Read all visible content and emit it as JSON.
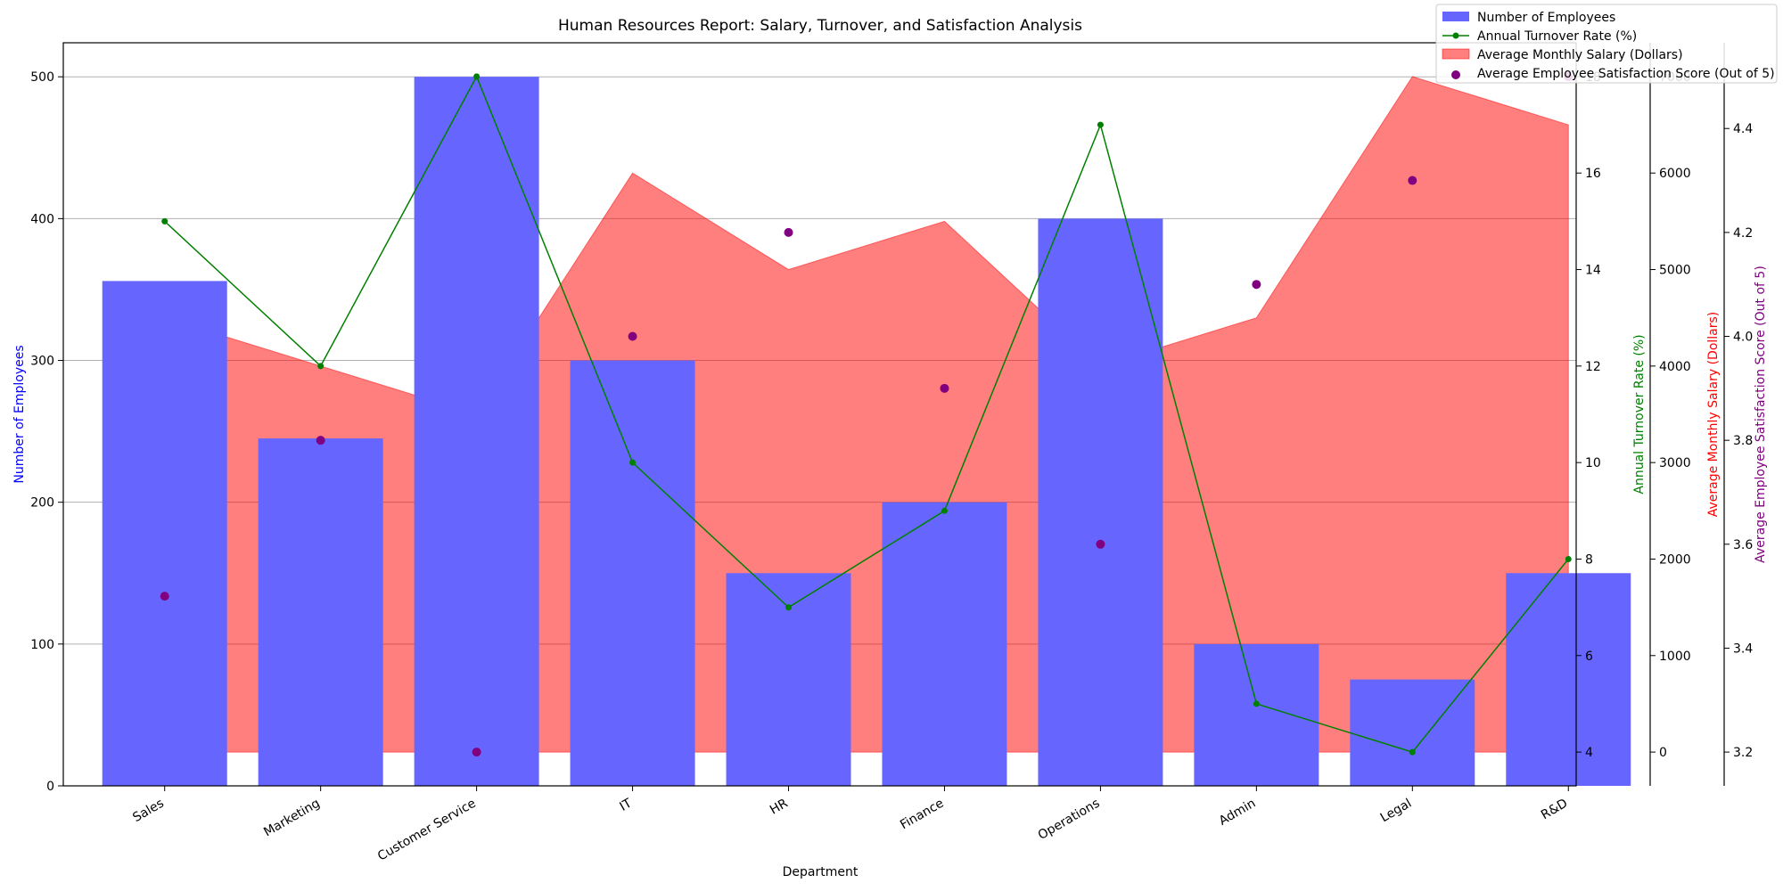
{
  "chart_data": {
    "type": "bar",
    "title": "Human Resources Report: Salary, Turnover, and Satisfaction Analysis",
    "xlabel": "Department",
    "categories": [
      "Sales",
      "Marketing",
      "Customer Service",
      "IT",
      "HR",
      "Finance",
      "Operations",
      "Admin",
      "Legal",
      "R&D"
    ],
    "grid": "horizontal",
    "legend_position": "top-right",
    "series": [
      {
        "name": "Number of Employees",
        "type": "bar",
        "axis": "Number of Employees",
        "color": "#6666ff",
        "values": [
          356,
          245,
          500,
          300,
          150,
          200,
          400,
          100,
          75,
          150
        ]
      },
      {
        "name": "Annual Turnover Rate (%)",
        "type": "line",
        "axis": "Annual Turnover Rate (%)",
        "color": "#008000",
        "values": [
          15,
          12,
          18,
          10,
          7,
          9,
          17,
          5,
          4,
          8
        ]
      },
      {
        "name": "Average Monthly Salary (Dollars)",
        "type": "area",
        "axis": "Average Monthly Salary (Dollars)",
        "color": "#ff0000",
        "values": [
          4500,
          4000,
          3500,
          6000,
          5000,
          5500,
          4000,
          4500,
          7000,
          6500
        ]
      },
      {
        "name": "Average Employee Satisfaction Score (Out of 5)",
        "type": "scatter",
        "axis": "Average Employee Satisfaction Score (Out of 5)",
        "color": "#800080",
        "values": [
          3.5,
          3.8,
          3.2,
          4.0,
          4.2,
          3.9,
          3.6,
          4.1,
          4.3,
          4.5
        ]
      }
    ],
    "axes": {
      "employees": {
        "label": "Number of Employees",
        "color": "#0000ff",
        "ylim": [
          0,
          524
        ],
        "ticks": [
          0,
          100,
          200,
          300,
          400,
          500
        ]
      },
      "turnover": {
        "label": "Annual Turnover Rate (%)",
        "color": "#008000",
        "ylim": [
          3.3,
          18.7
        ],
        "ticks": [
          4,
          6,
          8,
          10,
          12,
          14,
          16,
          18
        ]
      },
      "salary": {
        "label": "Average Monthly Salary (Dollars)",
        "color": "#ff0000",
        "ylim": [
          -350,
          7350
        ],
        "ticks": [
          0,
          1000,
          2000,
          3000,
          4000,
          5000,
          6000,
          7000
        ]
      },
      "satisfaction": {
        "label": "Average Employee Satisfaction Score (Out of 5)",
        "color": "#800080",
        "ylim": [
          3.135,
          4.565
        ],
        "ticks": [
          3.2,
          3.4,
          3.6,
          3.8,
          4.0,
          4.2,
          4.4
        ]
      }
    }
  }
}
